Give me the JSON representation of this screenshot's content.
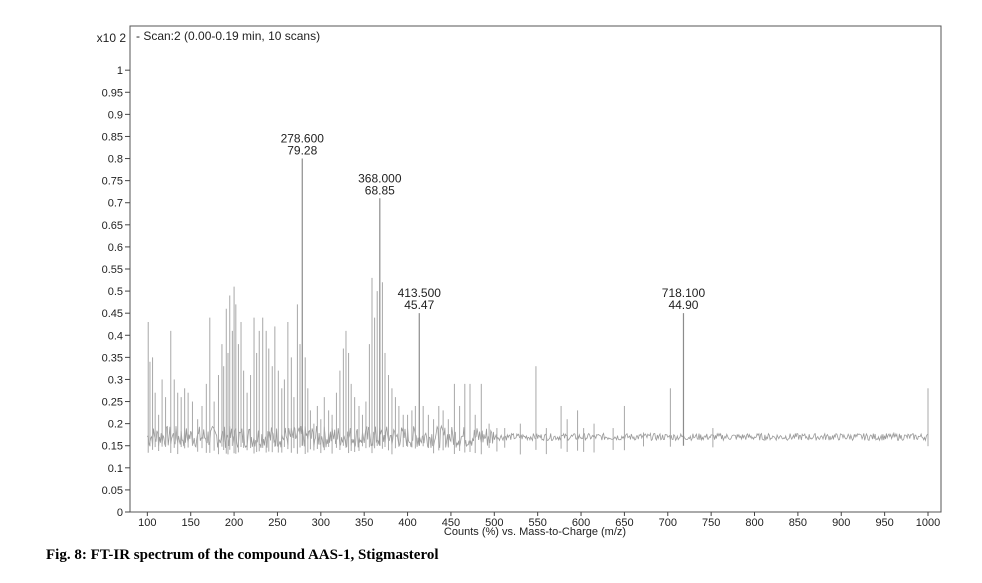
{
  "caption": "Fig. 8: FT-IR spectrum of the compound AAS-1, Stigmasterol",
  "chart_data": {
    "type": "bar",
    "title": "- Scan:2 (0.00-0.19 min, 10 scans)",
    "y_multiplier": "x10 2",
    "xlabel": "Counts (%) vs. Mass-to-Charge (m/z)",
    "ylabel": "",
    "xlim": [
      80,
      1015
    ],
    "ylim": [
      0,
      1.1
    ],
    "x_ticks": [
      100,
      150,
      200,
      250,
      300,
      350,
      400,
      450,
      500,
      550,
      600,
      650,
      700,
      750,
      800,
      850,
      900,
      950,
      1000
    ],
    "y_ticks": [
      0,
      0.05,
      0.1,
      0.15,
      0.2,
      0.25,
      0.3,
      0.35,
      0.4,
      0.45,
      0.5,
      0.55,
      0.6,
      0.65,
      0.7,
      0.75,
      0.8,
      0.85,
      0.9,
      0.95,
      1
    ],
    "y_tick_labels": [
      "0",
      "0.05",
      "0.1",
      "0.15",
      "0.2",
      "0.25",
      "0.3",
      "0.35",
      "0.4",
      "0.45",
      "0.5",
      "0.55",
      "0.6",
      "0.65",
      "0.7",
      "0.75",
      "0.8",
      "0.85",
      "0.9",
      "0.95",
      "1"
    ],
    "baseline": 0.17,
    "grid": false,
    "labeled_peaks": [
      {
        "mz": 278.6,
        "value": 0.8,
        "mz_label": "278.600",
        "abundance_label": "79.28"
      },
      {
        "mz": 368.0,
        "value": 0.71,
        "mz_label": "368.000",
        "abundance_label": "68.85"
      },
      {
        "mz": 413.5,
        "value": 0.45,
        "mz_label": "413.500",
        "abundance_label": "45.47"
      },
      {
        "mz": 718.1,
        "value": 0.45,
        "mz_label": "718.100",
        "abundance_label": "44.90"
      }
    ],
    "peaks": [
      {
        "mz": 101,
        "value": 0.43
      },
      {
        "mz": 103,
        "value": 0.34
      },
      {
        "mz": 106,
        "value": 0.35
      },
      {
        "mz": 109,
        "value": 0.27
      },
      {
        "mz": 113,
        "value": 0.22
      },
      {
        "mz": 117,
        "value": 0.3
      },
      {
        "mz": 121,
        "value": 0.26
      },
      {
        "mz": 127,
        "value": 0.41
      },
      {
        "mz": 131,
        "value": 0.3
      },
      {
        "mz": 135,
        "value": 0.27
      },
      {
        "mz": 139,
        "value": 0.26
      },
      {
        "mz": 143,
        "value": 0.28
      },
      {
        "mz": 147,
        "value": 0.27
      },
      {
        "mz": 152,
        "value": 0.25
      },
      {
        "mz": 158,
        "value": 0.21
      },
      {
        "mz": 163,
        "value": 0.24
      },
      {
        "mz": 168,
        "value": 0.29
      },
      {
        "mz": 172,
        "value": 0.44
      },
      {
        "mz": 177,
        "value": 0.25
      },
      {
        "mz": 182,
        "value": 0.31
      },
      {
        "mz": 186,
        "value": 0.38
      },
      {
        "mz": 188,
        "value": 0.33
      },
      {
        "mz": 191,
        "value": 0.46
      },
      {
        "mz": 193,
        "value": 0.36
      },
      {
        "mz": 195,
        "value": 0.49
      },
      {
        "mz": 198,
        "value": 0.41
      },
      {
        "mz": 200,
        "value": 0.51
      },
      {
        "mz": 202,
        "value": 0.47
      },
      {
        "mz": 205,
        "value": 0.38
      },
      {
        "mz": 208,
        "value": 0.43
      },
      {
        "mz": 211,
        "value": 0.32
      },
      {
        "mz": 215,
        "value": 0.27
      },
      {
        "mz": 219,
        "value": 0.31
      },
      {
        "mz": 223,
        "value": 0.44
      },
      {
        "mz": 226,
        "value": 0.36
      },
      {
        "mz": 229,
        "value": 0.41
      },
      {
        "mz": 233,
        "value": 0.44
      },
      {
        "mz": 237,
        "value": 0.41
      },
      {
        "mz": 240,
        "value": 0.37
      },
      {
        "mz": 244,
        "value": 0.33
      },
      {
        "mz": 247,
        "value": 0.42
      },
      {
        "mz": 251,
        "value": 0.32
      },
      {
        "mz": 255,
        "value": 0.28
      },
      {
        "mz": 258,
        "value": 0.3
      },
      {
        "mz": 262,
        "value": 0.43
      },
      {
        "mz": 266,
        "value": 0.35
      },
      {
        "mz": 269,
        "value": 0.26
      },
      {
        "mz": 273,
        "value": 0.47
      },
      {
        "mz": 276,
        "value": 0.38
      },
      {
        "mz": 282,
        "value": 0.35
      },
      {
        "mz": 285,
        "value": 0.28
      },
      {
        "mz": 288,
        "value": 0.23
      },
      {
        "mz": 292,
        "value": 0.2
      },
      {
        "mz": 296,
        "value": 0.24
      },
      {
        "mz": 300,
        "value": 0.21
      },
      {
        "mz": 304,
        "value": 0.26
      },
      {
        "mz": 309,
        "value": 0.23
      },
      {
        "mz": 313,
        "value": 0.22
      },
      {
        "mz": 318,
        "value": 0.27
      },
      {
        "mz": 322,
        "value": 0.32
      },
      {
        "mz": 326,
        "value": 0.37
      },
      {
        "mz": 329,
        "value": 0.41
      },
      {
        "mz": 332,
        "value": 0.36
      },
      {
        "mz": 335,
        "value": 0.29
      },
      {
        "mz": 339,
        "value": 0.26
      },
      {
        "mz": 344,
        "value": 0.24
      },
      {
        "mz": 348,
        "value": 0.22
      },
      {
        "mz": 352,
        "value": 0.25
      },
      {
        "mz": 356,
        "value": 0.38
      },
      {
        "mz": 359,
        "value": 0.53
      },
      {
        "mz": 362,
        "value": 0.44
      },
      {
        "mz": 365,
        "value": 0.5
      },
      {
        "mz": 371,
        "value": 0.52
      },
      {
        "mz": 374,
        "value": 0.36
      },
      {
        "mz": 378,
        "value": 0.31
      },
      {
        "mz": 382,
        "value": 0.28
      },
      {
        "mz": 386,
        "value": 0.26
      },
      {
        "mz": 390,
        "value": 0.24
      },
      {
        "mz": 395,
        "value": 0.22
      },
      {
        "mz": 400,
        "value": 0.22
      },
      {
        "mz": 405,
        "value": 0.23
      },
      {
        "mz": 409,
        "value": 0.24
      },
      {
        "mz": 418,
        "value": 0.24
      },
      {
        "mz": 424,
        "value": 0.22
      },
      {
        "mz": 430,
        "value": 0.21
      },
      {
        "mz": 436,
        "value": 0.24
      },
      {
        "mz": 441,
        "value": 0.23
      },
      {
        "mz": 447,
        "value": 0.21
      },
      {
        "mz": 454,
        "value": 0.29
      },
      {
        "mz": 460,
        "value": 0.24
      },
      {
        "mz": 466,
        "value": 0.29
      },
      {
        "mz": 472,
        "value": 0.29
      },
      {
        "mz": 478,
        "value": 0.22
      },
      {
        "mz": 485,
        "value": 0.29
      },
      {
        "mz": 494,
        "value": 0.2
      },
      {
        "mz": 503,
        "value": 0.19
      },
      {
        "mz": 512,
        "value": 0.19
      },
      {
        "mz": 530,
        "value": 0.2
      },
      {
        "mz": 548,
        "value": 0.33
      },
      {
        "mz": 560,
        "value": 0.19
      },
      {
        "mz": 577,
        "value": 0.24
      },
      {
        "mz": 584,
        "value": 0.21
      },
      {
        "mz": 596,
        "value": 0.23
      },
      {
        "mz": 603,
        "value": 0.19
      },
      {
        "mz": 615,
        "value": 0.2
      },
      {
        "mz": 637,
        "value": 0.19
      },
      {
        "mz": 650,
        "value": 0.24
      },
      {
        "mz": 672,
        "value": 0.18
      },
      {
        "mz": 703,
        "value": 0.28
      },
      {
        "mz": 752,
        "value": 0.19
      },
      {
        "mz": 1000,
        "value": 0.28
      }
    ]
  }
}
